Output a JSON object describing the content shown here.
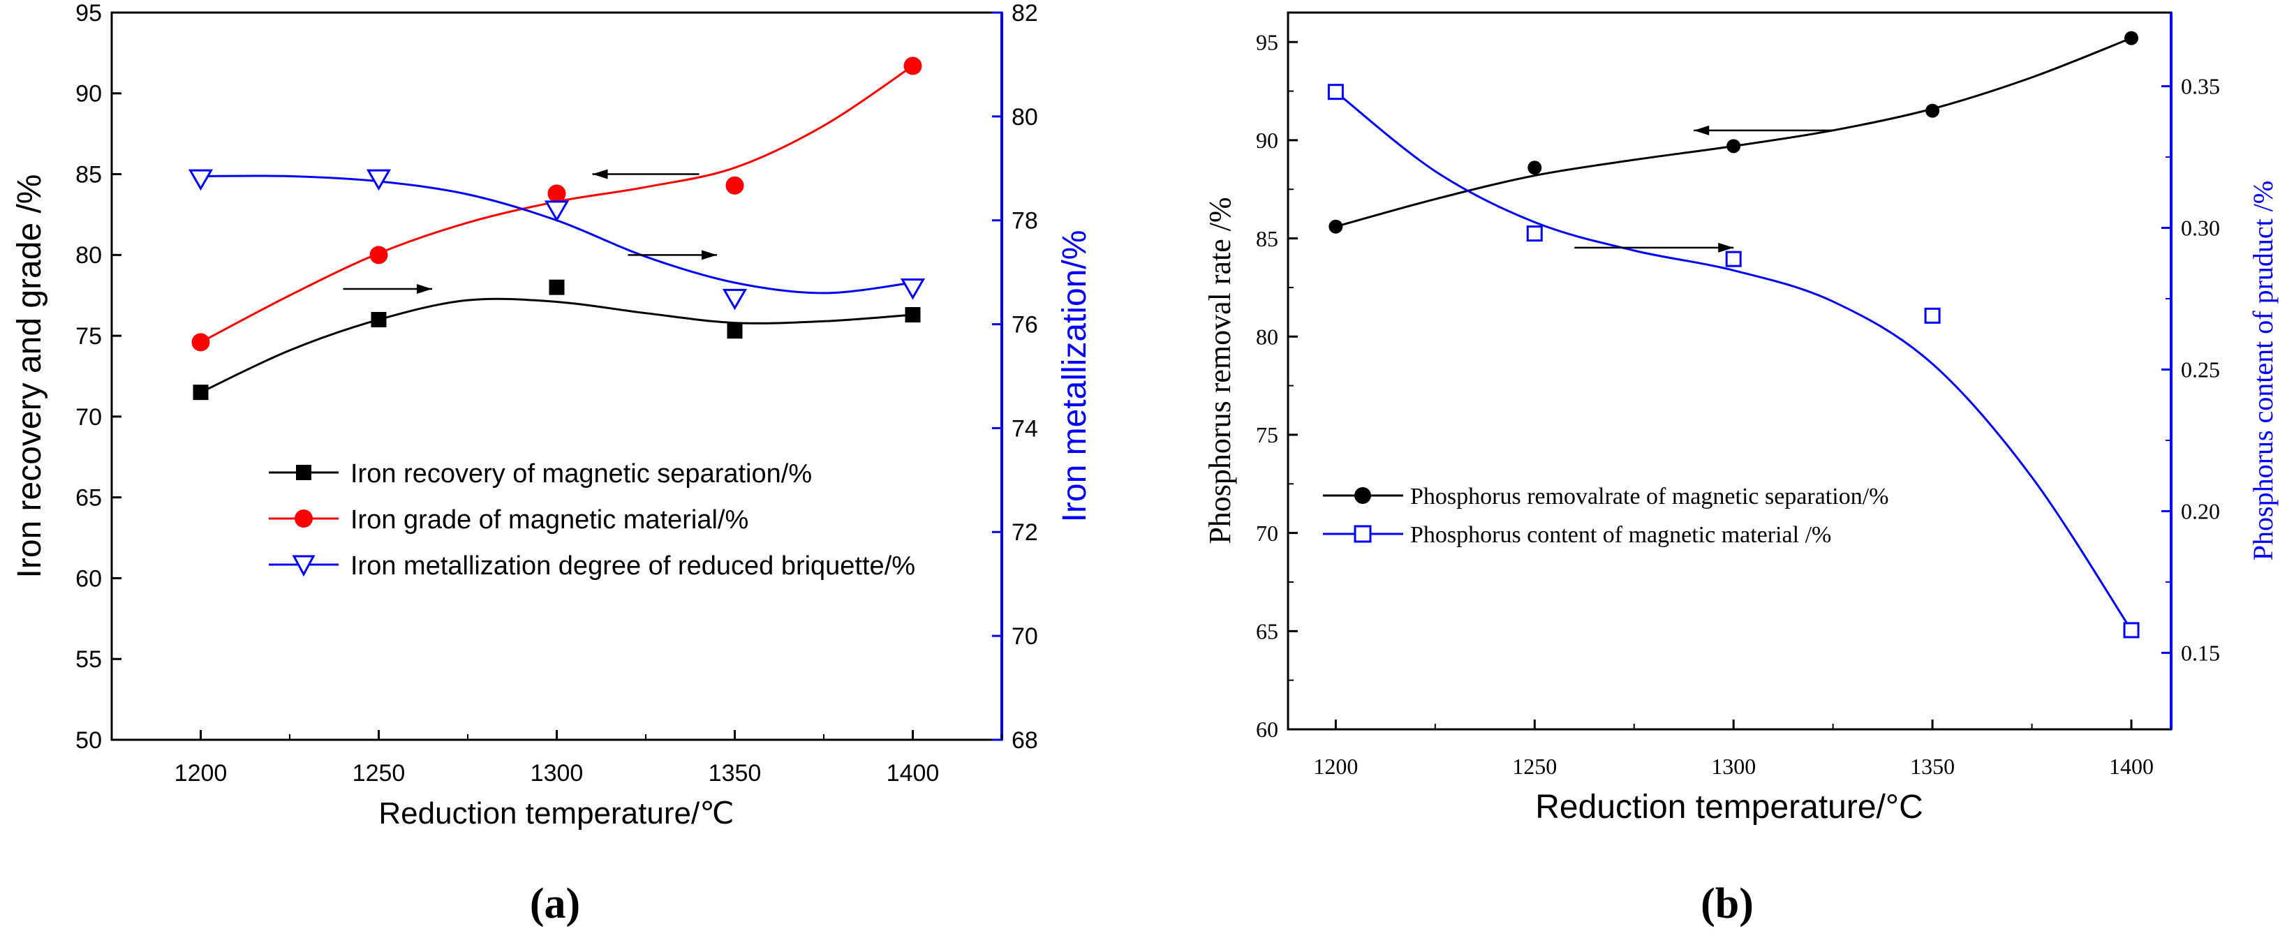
{
  "chart_data": [
    {
      "panel_label": "(a)",
      "type": "line",
      "xlabel": "Reduction temperature/℃",
      "ylabel_left": "Iron recovery and grade /%",
      "ylabel_right": "Iron metallization/%",
      "x_ticks": [
        1200,
        1250,
        1300,
        1350,
        1400
      ],
      "x_range": [
        1175,
        1425
      ],
      "y_left_range": [
        50,
        95
      ],
      "y_left_ticks": [
        50,
        55,
        60,
        65,
        70,
        75,
        80,
        85,
        90,
        95
      ],
      "y_right_range": [
        68,
        82
      ],
      "y_right_ticks": [
        68,
        70,
        72,
        74,
        76,
        78,
        80,
        82
      ],
      "colors": {
        "black": "#000000",
        "red": "#ff0000",
        "blue": "#0000ff"
      },
      "series": [
        {
          "name": "Iron recovery of magnetic separation/%",
          "axis": "left",
          "color": "#000000",
          "marker": "square",
          "x": [
            1200,
            1250,
            1300,
            1350,
            1400
          ],
          "values": [
            71.5,
            76.0,
            78.0,
            75.3,
            76.3
          ],
          "curve_x": [
            1200,
            1225,
            1250,
            1275,
            1300,
            1325,
            1350,
            1375,
            1400
          ],
          "curve_y": [
            71.5,
            74.1,
            76.0,
            77.2,
            77.1,
            76.4,
            75.8,
            75.9,
            76.3
          ]
        },
        {
          "name": "Iron grade of magnetic material/%",
          "axis": "left",
          "color": "#ff0000",
          "marker": "circle",
          "x": [
            1200,
            1250,
            1300,
            1350,
            1400
          ],
          "values": [
            74.6,
            80.0,
            83.8,
            84.3,
            91.7
          ],
          "curve_x": [
            1200,
            1225,
            1250,
            1275,
            1300,
            1325,
            1350,
            1375,
            1400
          ],
          "curve_y": [
            74.6,
            77.5,
            80.1,
            82.0,
            83.3,
            84.2,
            85.4,
            88.0,
            91.7
          ]
        },
        {
          "name": "Iron metallization degree of reduced briquette/%",
          "axis": "right",
          "color": "#0000ff",
          "marker": "triangle-down",
          "x": [
            1200,
            1250,
            1300,
            1350,
            1400
          ],
          "values": [
            78.8,
            78.8,
            78.2,
            76.5,
            76.7
          ],
          "curve_x": [
            1200,
            1225,
            1250,
            1275,
            1300,
            1325,
            1350,
            1375,
            1400
          ],
          "curve_y": [
            78.85,
            78.85,
            78.75,
            78.5,
            78.0,
            77.3,
            76.8,
            76.6,
            76.8
          ]
        }
      ],
      "arrows": [
        {
          "x_from": 1340,
          "x_to": 1310,
          "y": 85,
          "axis": "left"
        },
        {
          "x_from": 1240,
          "x_to": 1265,
          "y": 77.9,
          "axis": "left"
        },
        {
          "x_from": 1320,
          "x_to": 1345,
          "y": 80,
          "axis": "left"
        }
      ]
    },
    {
      "panel_label": "(b)",
      "type": "line",
      "xlabel": "Reduction temperature/°C",
      "ylabel_left": "Phosphorus removal rate /%",
      "ylabel_right": "Phosphorus content of pruduct /%",
      "x_ticks": [
        1200,
        1250,
        1300,
        1350,
        1400
      ],
      "x_range": [
        1188,
        1410
      ],
      "y_left_range": [
        60,
        96.5
      ],
      "y_left_ticks": [
        60,
        65,
        70,
        75,
        80,
        85,
        90,
        95
      ],
      "y_right_range": [
        0.123,
        0.376
      ],
      "y_right_ticks": [
        0.15,
        0.2,
        0.25,
        0.3,
        0.35
      ],
      "y_right_tick_labels": [
        "0.15",
        "0.20",
        "0.25",
        "0.30",
        "0.35"
      ],
      "colors": {
        "black": "#000000",
        "blue": "#0000ff"
      },
      "series": [
        {
          "name": "Phosphorus removalrate of magnetic separation/%",
          "axis": "left",
          "color": "#000000",
          "marker": "circle",
          "x": [
            1200,
            1250,
            1300,
            1350,
            1400
          ],
          "values": [
            85.6,
            88.6,
            89.7,
            91.5,
            95.2
          ],
          "curve_x": [
            1200,
            1225,
            1250,
            1275,
            1300,
            1325,
            1350,
            1375,
            1400
          ],
          "curve_y": [
            85.6,
            87.0,
            88.2,
            89.0,
            89.7,
            90.5,
            91.6,
            93.2,
            95.2
          ]
        },
        {
          "name": "Phosphorus content of magnetic material /%",
          "axis": "right",
          "color": "#0000ff",
          "marker": "square-open",
          "x": [
            1200,
            1250,
            1300,
            1350,
            1400
          ],
          "values": [
            0.348,
            0.298,
            0.289,
            0.269,
            0.158
          ],
          "curve_x": [
            1200,
            1225,
            1250,
            1275,
            1300,
            1325,
            1350,
            1375,
            1400
          ],
          "curve_y": [
            0.348,
            0.32,
            0.302,
            0.292,
            0.285,
            0.274,
            0.252,
            0.212,
            0.158
          ]
        }
      ],
      "arrows": [
        {
          "x_from": 1325,
          "x_to": 1290,
          "y": 90.5,
          "axis": "left"
        },
        {
          "x_from": 1260,
          "x_to": 1300,
          "y": 0.293,
          "axis": "right"
        }
      ]
    }
  ]
}
